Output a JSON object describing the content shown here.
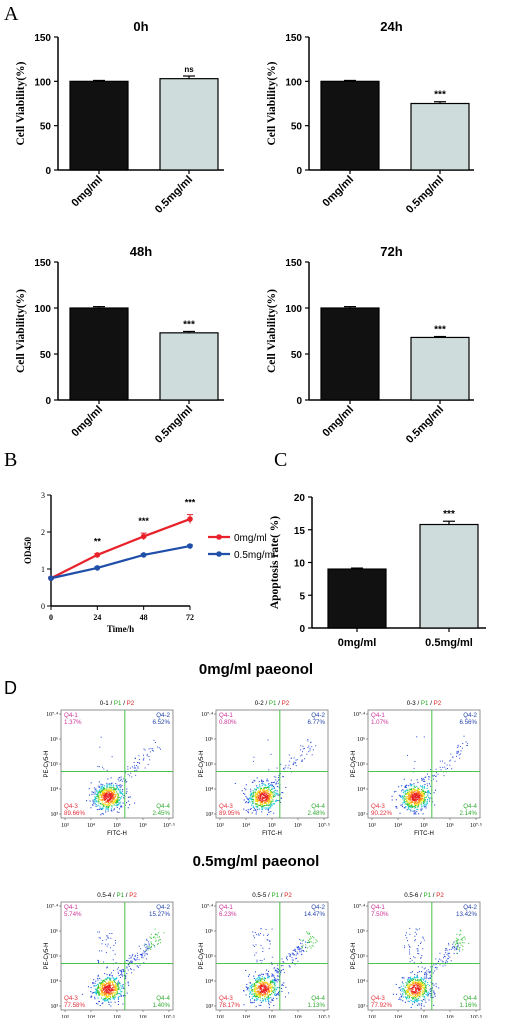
{
  "figure": {
    "panel_labels": [
      "A",
      "B",
      "C",
      "D"
    ],
    "section_titles": [
      "0mg/ml paeonol",
      "0.5mg/ml paeonol"
    ]
  },
  "colors": {
    "bar_control": "#111111",
    "bar_treated": "#cfdcdc",
    "line_control": "#e8212b",
    "line_treated": "#1f4fa8",
    "q1": "#cc3399",
    "q2": "#2244aa",
    "q3": "#e0303a",
    "q4": "#33aa33",
    "gate_line": "#33bb33"
  },
  "chart_data": [
    {
      "id": "A0",
      "type": "bar",
      "title": "0h",
      "ylabel": "Cell Viability(%)",
      "categories": [
        "0mg/ml",
        "0.5mg/ml"
      ],
      "values": [
        100,
        103
      ],
      "errors": [
        1,
        3
      ],
      "significance": [
        "",
        "ns"
      ],
      "ylim": [
        0,
        150
      ],
      "yticks": [
        "0",
        "50",
        "100",
        "150"
      ]
    },
    {
      "id": "A24",
      "type": "bar",
      "title": "24h",
      "ylabel": "Cell Viability(%)",
      "categories": [
        "0mg/ml",
        "0.5mg/ml"
      ],
      "values": [
        100,
        75
      ],
      "errors": [
        1,
        2
      ],
      "significance": [
        "",
        "***"
      ],
      "ylim": [
        0,
        150
      ],
      "yticks": [
        "0",
        "50",
        "100",
        "150"
      ]
    },
    {
      "id": "A48",
      "type": "bar",
      "title": "48h",
      "ylabel": "Cell Viability(%)",
      "categories": [
        "0mg/ml",
        "0.5mg/ml"
      ],
      "values": [
        100,
        73
      ],
      "errors": [
        1.5,
        1.5
      ],
      "significance": [
        "",
        "***"
      ],
      "ylim": [
        0,
        150
      ],
      "yticks": [
        "0",
        "50",
        "100",
        "150"
      ]
    },
    {
      "id": "A72",
      "type": "bar",
      "title": "72h",
      "ylabel": "Cell Viability(%)",
      "categories": [
        "0mg/ml",
        "0.5mg/ml"
      ],
      "values": [
        100,
        68
      ],
      "errors": [
        1.5,
        1
      ],
      "significance": [
        "",
        "***"
      ],
      "ylim": [
        0,
        150
      ],
      "yticks": [
        "0",
        "50",
        "100",
        "150"
      ]
    },
    {
      "id": "B",
      "type": "line",
      "xlabel": "Time/h",
      "ylabel": "OD450",
      "x": [
        0,
        24,
        48,
        72
      ],
      "xlim": [
        0,
        72
      ],
      "ylim": [
        0,
        3
      ],
      "xticks": [
        "0",
        "24",
        "48",
        "72"
      ],
      "yticks": [
        "0",
        "1",
        "2",
        "3"
      ],
      "series": [
        {
          "name": "0mg/ml",
          "values": [
            0.75,
            1.38,
            1.88,
            2.35
          ],
          "errors": [
            0.03,
            0.04,
            0.09,
            0.12
          ]
        },
        {
          "name": "0.5mg/ml",
          "values": [
            0.75,
            1.03,
            1.38,
            1.62
          ],
          "errors": [
            0.03,
            0.03,
            0.03,
            0.03
          ]
        }
      ],
      "significance": [
        "",
        "**",
        "***",
        "***"
      ],
      "legend": "right"
    },
    {
      "id": "C",
      "type": "bar",
      "ylabel": "Apoptosis rate( %)",
      "categories": [
        "0mg/ml",
        "0.5mg/ml"
      ],
      "values": [
        9.0,
        15.8
      ],
      "errors": [
        0.15,
        0.5
      ],
      "significance": [
        "",
        "***"
      ],
      "ylim": [
        0,
        20
      ],
      "yticks": [
        "0",
        "5",
        "10",
        "15",
        "20"
      ]
    },
    {
      "id": "D",
      "type": "scatter",
      "xlabel": "FITC-H",
      "ylabel": "PE-Cy5-H",
      "xticks": [
        "10³",
        "10⁴",
        "10⁵",
        "10⁶",
        "10⁷·⁵"
      ],
      "yticks": [
        "10³",
        "10⁴",
        "10⁵",
        "10⁶",
        "10⁷·⁴"
      ],
      "gate_label": [
        "P1",
        "P2"
      ],
      "plots": [
        {
          "title": "0-1",
          "q1": [
            "Q4-1",
            "1.37%"
          ],
          "q2": [
            "Q4-2",
            "6.52%"
          ],
          "q3": [
            "Q4-3",
            "89.66%"
          ],
          "q4": [
            "Q4-4",
            "2.45%"
          ]
        },
        {
          "title": "0-2",
          "q1": [
            "Q4-1",
            "0.80%"
          ],
          "q2": [
            "Q4-2",
            "6.77%"
          ],
          "q3": [
            "Q4-3",
            "89.95%"
          ],
          "q4": [
            "Q4-4",
            "2.48%"
          ]
        },
        {
          "title": "0-3",
          "q1": [
            "Q4-1",
            "1.07%"
          ],
          "q2": [
            "Q4-2",
            "6.56%"
          ],
          "q3": [
            "Q4-3",
            "90.22%"
          ],
          "q4": [
            "Q4-4",
            "2.14%"
          ]
        },
        {
          "title": "0.5-4",
          "q1": [
            "Q4-1",
            "5.74%"
          ],
          "q2": [
            "Q4-2",
            "15.27%"
          ],
          "q3": [
            "Q4-3",
            "77.58%"
          ],
          "q4": [
            "Q4-4",
            "1.40%"
          ]
        },
        {
          "title": "0.5-5",
          "q1": [
            "Q4-1",
            "6.23%"
          ],
          "q2": [
            "Q4-2",
            "14.47%"
          ],
          "q3": [
            "Q4-3",
            "78.17%"
          ],
          "q4": [
            "Q4-4",
            "1.13%"
          ]
        },
        {
          "title": "0.5-6",
          "q1": [
            "Q4-1",
            "7.50%"
          ],
          "q2": [
            "Q4-2",
            "13.42%"
          ],
          "q3": [
            "Q4-3",
            "77.92%"
          ],
          "q4": [
            "Q4-4",
            "1.16%"
          ]
        }
      ]
    }
  ]
}
